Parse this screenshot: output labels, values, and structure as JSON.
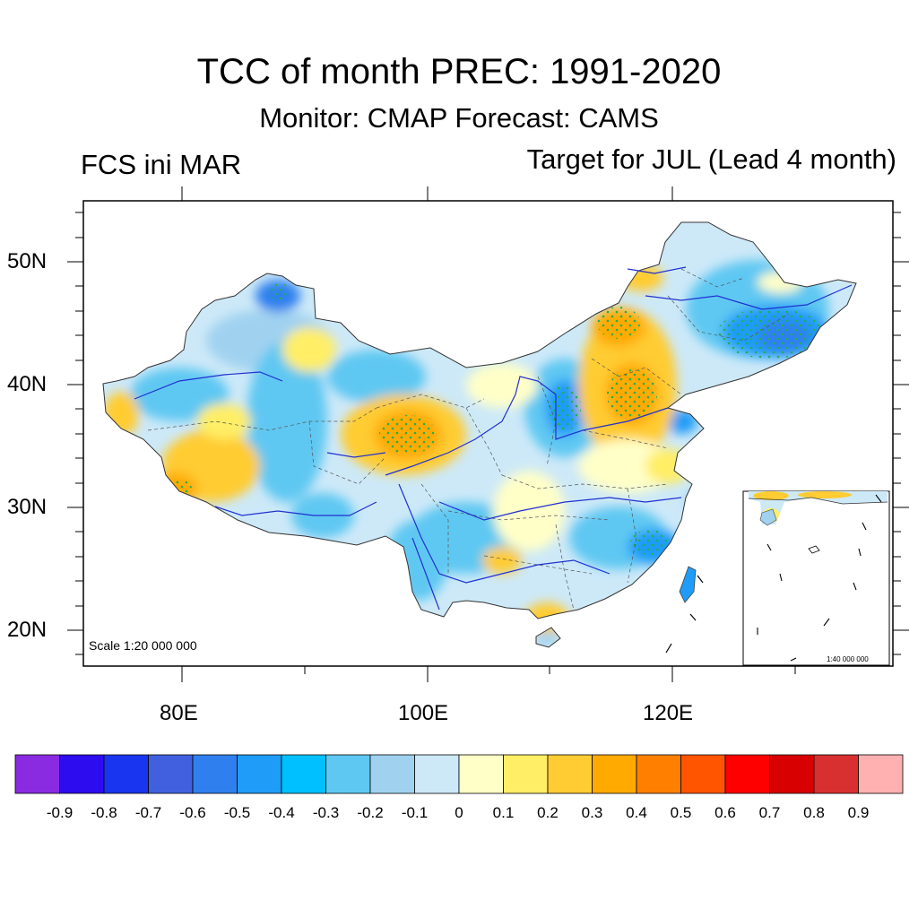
{
  "title": "TCC of month PREC: 1991-2020",
  "subtitle": "Monitor: CMAP   Forecast: CAMS",
  "left_label": "FCS ini MAR",
  "right_label": "Target for JUL (Lead 4 month)",
  "scale_main": "Scale 1:20 000 000",
  "scale_inset": "1:40 000 000",
  "axes": {
    "lat_labels": [
      "50N",
      "40N",
      "30N",
      "20N"
    ],
    "lon_labels": [
      "80E",
      "100E",
      "120E"
    ]
  },
  "colorbar": {
    "colors": [
      "#8a2be2",
      "#2e0cf0",
      "#1a35f0",
      "#4060df",
      "#2f80ee",
      "#1e9cf8",
      "#00c0ff",
      "#5ec8f2",
      "#a0d2f0",
      "#cde9f8",
      "#ffffc8",
      "#ffee66",
      "#ffcc33",
      "#ffaa00",
      "#ff8000",
      "#ff5500",
      "#ff0000",
      "#d80000",
      "#d83030",
      "#ffb0b0"
    ],
    "labels": [
      "-0.9",
      "-0.8",
      "-0.7",
      "-0.6",
      "-0.5",
      "-0.4",
      "-0.3",
      "-0.2",
      "-0.1",
      "0",
      "0.1",
      "0.2",
      "0.3",
      "0.4",
      "0.5",
      "0.6",
      "0.7",
      "0.8",
      "0.9"
    ]
  },
  "colors": {
    "river": "#2030d0",
    "dots": "#20b050",
    "frame": "#000000"
  }
}
